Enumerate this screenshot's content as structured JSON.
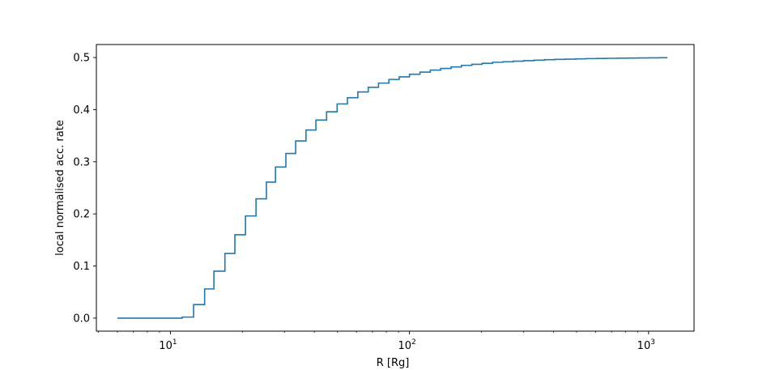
{
  "chart_data": {
    "type": "line",
    "title": "",
    "xlabel": "R [Rg]",
    "ylabel": "local normalised acc. rate",
    "x_scale": "log",
    "xlim": [
      4.9,
      1550
    ],
    "ylim": [
      -0.025,
      0.525
    ],
    "grid": false,
    "legend": "none",
    "line_color": "#1f77b4",
    "x_ticks": [
      {
        "value": 10,
        "base": "10",
        "exp": "1"
      },
      {
        "value": 100,
        "base": "10",
        "exp": "2"
      },
      {
        "value": 1000,
        "base": "10",
        "exp": "3"
      }
    ],
    "y_ticks": [
      {
        "value": 0.0,
        "label": "0.0"
      },
      {
        "value": 0.1,
        "label": "0.1"
      },
      {
        "value": 0.2,
        "label": "0.2"
      },
      {
        "value": 0.3,
        "label": "0.3"
      },
      {
        "value": 0.4,
        "label": "0.4"
      },
      {
        "value": 0.5,
        "label": "0.5"
      }
    ],
    "step_edges": [
      6.0,
      11.2,
      12.5,
      13.9,
      15.2,
      16.9,
      18.6,
      20.6,
      22.8,
      25.2,
      27.5,
      30.4,
      33.4,
      36.9,
      40.6,
      45.0,
      49.8,
      55.0,
      60.8,
      67.2,
      74.2,
      82.0,
      90.6,
      100.0,
      110.6,
      122.2,
      135.0,
      149.2,
      164.9,
      182.3,
      201.4,
      222.6,
      246.0,
      271.9,
      300.5,
      332.1,
      367.0,
      405.6,
      448.2,
      495.3,
      547.4,
      605.0,
      668.6,
      738.9,
      816.6,
      902.5,
      997.4,
      1102.3,
      1200.0
    ],
    "step_values": [
      0.0,
      0.002,
      0.026,
      0.056,
      0.09,
      0.124,
      0.16,
      0.196,
      0.229,
      0.261,
      0.29,
      0.316,
      0.34,
      0.361,
      0.38,
      0.396,
      0.411,
      0.423,
      0.434,
      0.443,
      0.451,
      0.458,
      0.463,
      0.468,
      0.472,
      0.476,
      0.479,
      0.482,
      0.485,
      0.487,
      0.489,
      0.491,
      0.492,
      0.493,
      0.494,
      0.495,
      0.496,
      0.4965,
      0.497,
      0.4975,
      0.498,
      0.4983,
      0.4986,
      0.4989,
      0.4991,
      0.4993,
      0.4995,
      0.4997
    ]
  }
}
